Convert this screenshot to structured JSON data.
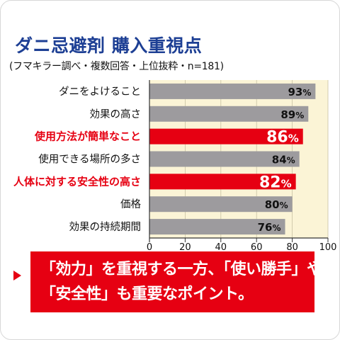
{
  "header": {
    "title": "ダニ忌避剤 購入重視点",
    "subtitle": "(フマキラー調べ・複数回答・上位抜粋・n=181)"
  },
  "callout": {
    "line1": "「効力」を重視する一方、「使い勝手」や",
    "line2": "「安全性」も重要なポイント。"
  },
  "colors": {
    "title": "#1d3f94",
    "bar_default": "#9d9b9e",
    "bar_highlight": "#e60012",
    "label_highlight": "#e60012",
    "plot_background": "#fbf4d6",
    "callout_background": "#e60012"
  },
  "chart_data": {
    "type": "bar",
    "orientation": "horizontal",
    "categories": [
      "ダニをよけること",
      "効果の高さ",
      "使用方法が簡単なこと",
      "使用できる場所の多さ",
      "人体に対する安全性の高さ",
      "価格",
      "効果の持続期間"
    ],
    "values": [
      93,
      89,
      86,
      84,
      82,
      80,
      76
    ],
    "unit": "%",
    "highlighted": [
      false,
      false,
      true,
      false,
      true,
      false,
      false
    ],
    "xlim": [
      0,
      100
    ],
    "xticks": [
      0,
      20,
      40,
      60,
      80,
      100
    ],
    "grid": true
  }
}
